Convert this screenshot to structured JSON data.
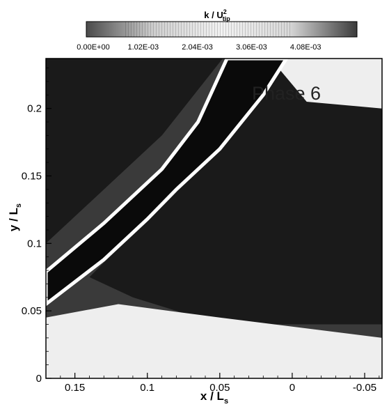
{
  "chart_data": {
    "type": "heatmap",
    "title": "",
    "annotation": "Phase 6",
    "xlabel": "x / L",
    "xlabel_subscript": "s",
    "ylabel": "y / L",
    "ylabel_subscript": "s",
    "xlim": [
      0.17,
      -0.062
    ],
    "ylim": [
      0,
      0.237
    ],
    "x_ticks": [
      0.15,
      0.1,
      0.05,
      0,
      -0.05
    ],
    "x_tick_labels": [
      "0.15",
      "0.1",
      "0.05",
      "0",
      "-0.05"
    ],
    "y_ticks": [
      0,
      0.05,
      0.1,
      0.15,
      0.2
    ],
    "y_tick_labels": [
      "0",
      "0.05",
      "0.1",
      "0.15",
      "0.2"
    ],
    "colorbar": {
      "label": "k / U",
      "label_superscript": "2",
      "label_subscript": "tip",
      "range": [
        0,
        0.0051
      ],
      "ticks": [
        0,
        0.00102,
        0.00204,
        0.00306,
        0.00408
      ],
      "tick_labels": [
        "0.00E+00",
        "1.02E-03",
        "2.04E-03",
        "3.06E-03",
        "4.08E-03"
      ],
      "colors": [
        "#4a4a4a",
        "#cfcfcf",
        "#f2f2f2",
        "#d8d8d8",
        "#3a3a3a"
      ]
    },
    "blade": {
      "upper_edge": [
        [
          0.17,
          0.079
        ],
        [
          0.13,
          0.115
        ],
        [
          0.09,
          0.155
        ],
        [
          0.065,
          0.19
        ],
        [
          0.045,
          0.237
        ]
      ],
      "lower_edge": [
        [
          0.17,
          0.055
        ],
        [
          0.13,
          0.088
        ],
        [
          0.1,
          0.118
        ],
        [
          0.08,
          0.14
        ],
        [
          0.05,
          0.17
        ],
        [
          0.02,
          0.21
        ],
        [
          0.004,
          0.237
        ]
      ]
    },
    "regions": [
      {
        "level": "low",
        "polygon": [
          [
            0.17,
            0.237
          ],
          [
            0.048,
            0.237
          ],
          [
            0.09,
            0.18
          ],
          [
            0.17,
            0.1
          ]
        ]
      },
      {
        "level": "low",
        "polygon": [
          [
            0.02,
            0.237
          ],
          [
            -0.062,
            0.237
          ],
          [
            -0.062,
            0.04
          ],
          [
            0.05,
            0.04
          ],
          [
            0.11,
            0.06
          ],
          [
            0.14,
            0.075
          ],
          [
            0.08,
            0.14
          ]
        ]
      },
      {
        "level": "high",
        "polygon": [
          [
            0.17,
            0
          ],
          [
            -0.062,
            0
          ],
          [
            -0.062,
            0.03
          ],
          [
            0.05,
            0.045
          ],
          [
            0.12,
            0.055
          ],
          [
            0.17,
            0.045
          ]
        ]
      },
      {
        "level": "high",
        "polygon": [
          [
            0.015,
            0.237
          ],
          [
            -0.062,
            0.237
          ],
          [
            -0.062,
            0.2
          ],
          [
            -0.01,
            0.205
          ]
        ]
      }
    ]
  }
}
